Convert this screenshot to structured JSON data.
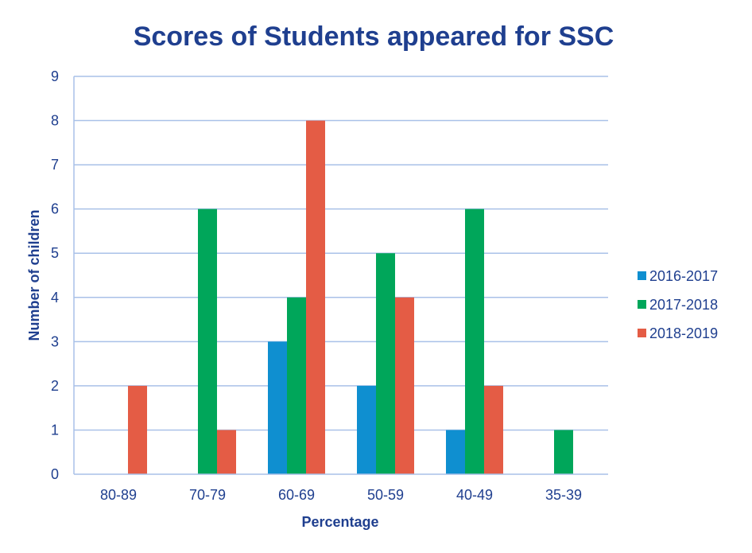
{
  "chart_data": {
    "type": "bar",
    "title": "Scores of Students appeared for SSC",
    "xlabel": "Percentage",
    "ylabel": "Number of children",
    "categories": [
      "80-89",
      "70-79",
      "60-69",
      "50-59",
      "40-49",
      "35-39"
    ],
    "ylim": [
      0,
      9
    ],
    "yticks": [
      0,
      1,
      2,
      3,
      4,
      5,
      6,
      7,
      8,
      9
    ],
    "grid": true,
    "legend_position": "right",
    "series": [
      {
        "name": "2016-2017",
        "color": "#0f8fd0",
        "values": [
          0,
          0,
          3,
          2,
          1,
          0
        ]
      },
      {
        "name": "2017-2018",
        "color": "#00a65a",
        "values": [
          0,
          6,
          4,
          5,
          6,
          1
        ]
      },
      {
        "name": "2018-2019",
        "color": "#e45c45",
        "values": [
          2,
          1,
          8,
          4,
          2,
          0
        ]
      }
    ]
  }
}
